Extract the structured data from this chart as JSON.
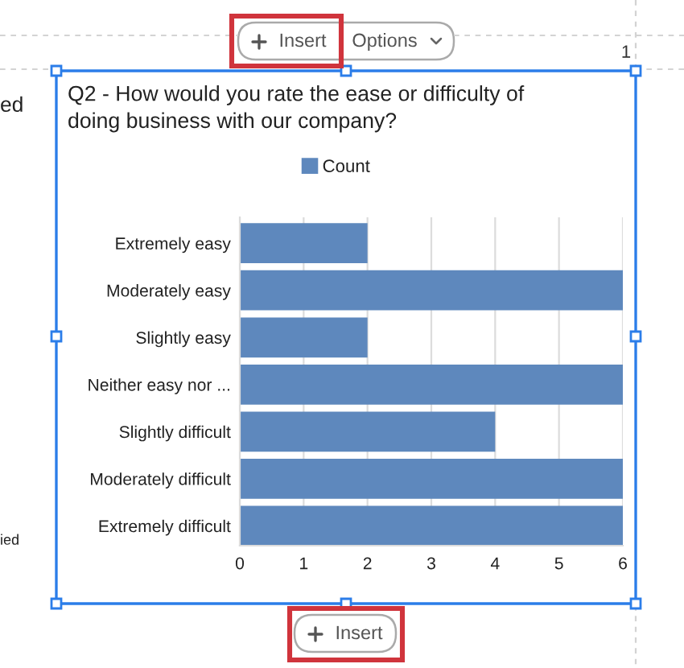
{
  "chart_data": {
    "type": "bar",
    "orientation": "horizontal",
    "title": "Q2 - How would you rate the ease or difficulty of doing business with our company?",
    "categories": [
      "Extremely easy",
      "Moderately easy",
      "Slightly easy",
      "Neither easy nor ...",
      "Slightly difficult",
      "Moderately difficult",
      "Extremely difficult"
    ],
    "series": [
      {
        "name": "Count",
        "color": "#5e88bd",
        "values": [
          2,
          6,
          2,
          6,
          4,
          6,
          6
        ]
      }
    ],
    "xlim": [
      0,
      6
    ],
    "xticks": [
      0,
      1,
      2,
      3,
      4,
      5,
      6
    ],
    "grid": "x",
    "legend": "top",
    "annotations": [
      "Insert",
      "Options",
      "1",
      "Insert",
      "ed",
      "ied"
    ]
  }
}
